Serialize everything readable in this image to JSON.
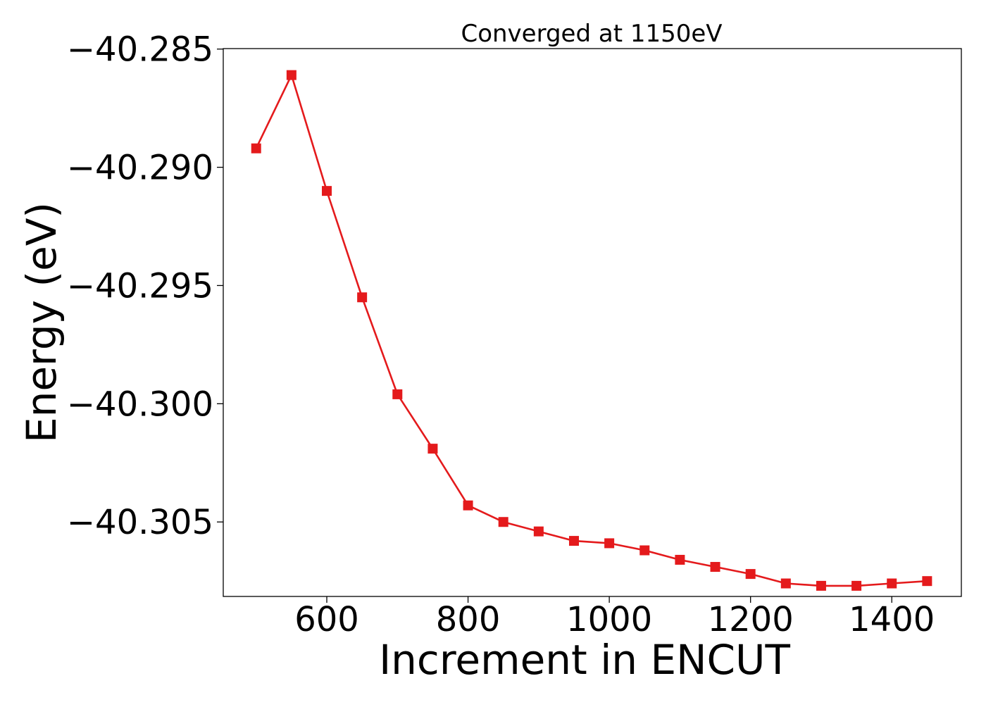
{
  "chart_data": {
    "type": "line",
    "title": "Converged at 1150eV",
    "xlabel": "Increment in ENCUT",
    "ylabel": "Energy (eV)",
    "x": [
      500,
      550,
      600,
      650,
      700,
      750,
      800,
      850,
      900,
      950,
      1000,
      1050,
      1100,
      1150,
      1200,
      1250,
      1300,
      1350,
      1400,
      1450
    ],
    "series": [
      {
        "values": [
          -40.2892,
          -40.2861,
          -40.291,
          -40.2955,
          -40.2996,
          -40.3019,
          -40.3043,
          -40.305,
          -40.3054,
          -40.3058,
          -40.3059,
          -40.3062,
          -40.3066,
          -40.3069,
          -40.3072,
          -40.3076,
          -40.3077,
          -40.3077,
          -40.3076,
          -40.3075
        ],
        "color": "#e41a1c",
        "marker": "square"
      }
    ],
    "xticks": [
      600,
      800,
      1000,
      1200,
      1400
    ],
    "xtick_labels": [
      "600",
      "800",
      "1000",
      "1200",
      "1400"
    ],
    "yticks": [
      -40.285,
      -40.29,
      -40.295,
      -40.3,
      -40.305
    ],
    "ytick_labels": [
      "−40.285",
      "−40.290",
      "−40.295",
      "−40.300",
      "−40.305"
    ],
    "xlim": [
      453.4,
      1498.5
    ],
    "ylim": [
      -40.30815,
      -40.28498
    ],
    "grid": false,
    "legend": false
  }
}
